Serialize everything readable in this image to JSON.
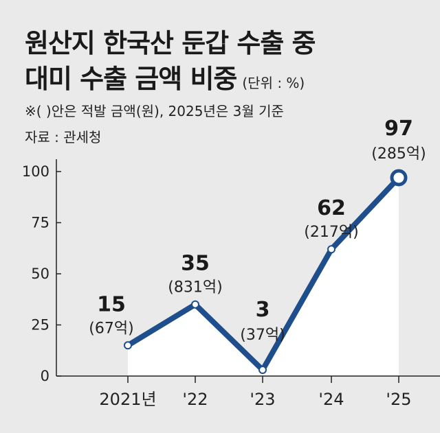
{
  "title_line1": "원산지 한국산 둔갑 수출 중",
  "title_line2": "대미 수출 금액 비중",
  "unit": "(단위 : %)",
  "note": "※( )안은 적발 금액(원), 2025년은 3월 기준",
  "source": "자료 : 관세청",
  "colors": {
    "line": "#1f4e8c",
    "background": "#eaeaea",
    "area": "#ffffff"
  },
  "chart_data": {
    "type": "line",
    "categories": [
      "2021년",
      "'22",
      "'23",
      "'24",
      "'25"
    ],
    "values": [
      15,
      35,
      3,
      62,
      97
    ],
    "value_labels": [
      "15",
      "35",
      "3",
      "62",
      "97"
    ],
    "amount_labels": [
      "(67억)",
      "(831억)",
      "(37억)",
      "(217억)",
      "(285억)"
    ],
    "yticks": [
      "0",
      "25",
      "50",
      "75",
      "100"
    ],
    "ylim": [
      0,
      100
    ],
    "grid": false,
    "highlight_last": true
  }
}
